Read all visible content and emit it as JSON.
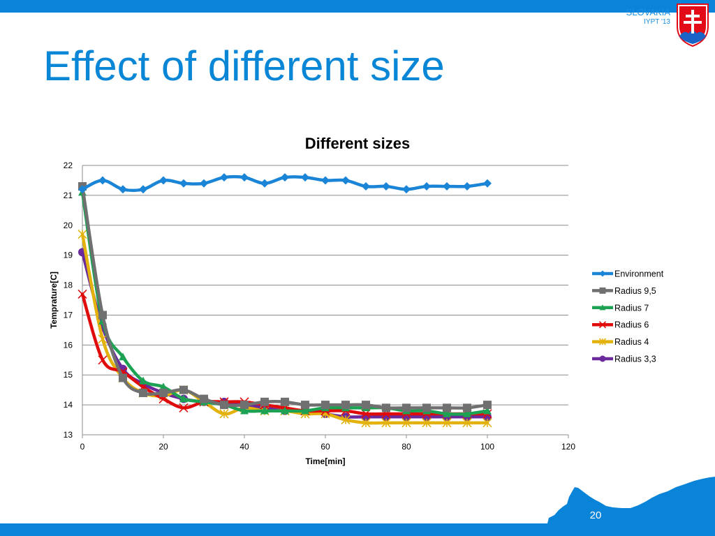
{
  "header": {
    "country": "SLOVAKIA",
    "event": "IYPT '13",
    "brand_color": "#0a84d8"
  },
  "crest_icon": "slovak-coat-of-arms-icon",
  "slide": {
    "title": "Effect of different size",
    "page_number": "20"
  },
  "chart_data": {
    "type": "line",
    "title": "Different sizes",
    "xlabel": "Time[min]",
    "ylabel": "Temprature[C]",
    "xlim": [
      0,
      120
    ],
    "ylim": [
      13,
      22
    ],
    "xticks": [
      0,
      20,
      40,
      60,
      80,
      100,
      120
    ],
    "yticks": [
      13,
      14,
      15,
      16,
      17,
      18,
      19,
      20,
      21,
      22
    ],
    "grid": "horizontal",
    "legend_position": "right",
    "x": [
      0,
      5,
      10,
      15,
      20,
      25,
      30,
      35,
      40,
      45,
      50,
      55,
      60,
      65,
      70,
      75,
      80,
      85,
      90,
      95,
      100
    ],
    "series": [
      {
        "name": "Environment",
        "color": "#1a85d6",
        "marker": "diamond",
        "values": [
          21.2,
          21.5,
          21.2,
          21.2,
          21.5,
          21.4,
          21.4,
          21.6,
          21.6,
          21.4,
          21.6,
          21.6,
          21.5,
          21.5,
          21.3,
          21.3,
          21.2,
          21.3,
          21.3,
          21.3,
          21.4
        ]
      },
      {
        "name": "Radius 9,5",
        "color": "#707070",
        "marker": "square",
        "values": [
          21.3,
          17.0,
          14.9,
          14.4,
          14.4,
          14.5,
          14.2,
          14.0,
          14.0,
          14.1,
          14.1,
          14.0,
          14.0,
          14.0,
          14.0,
          13.9,
          13.9,
          13.9,
          13.9,
          13.9,
          14.0
        ]
      },
      {
        "name": "Radius 7",
        "color": "#1da254",
        "marker": "triangle",
        "values": [
          21.1,
          16.8,
          15.6,
          14.8,
          14.6,
          14.2,
          14.1,
          14.0,
          13.8,
          13.8,
          13.8,
          13.8,
          13.9,
          13.9,
          13.9,
          13.9,
          13.8,
          13.8,
          13.7,
          13.7,
          13.8
        ]
      },
      {
        "name": "Radius 6",
        "color": "#e00b0b",
        "marker": "x",
        "values": [
          17.7,
          15.5,
          15.1,
          14.6,
          14.2,
          13.9,
          14.1,
          14.1,
          14.1,
          14.0,
          13.9,
          13.8,
          13.8,
          13.8,
          13.7,
          13.7,
          13.7,
          13.7,
          13.7,
          13.7,
          13.7
        ]
      },
      {
        "name": "Radius 4",
        "color": "#e3b20c",
        "marker": "star",
        "values": [
          19.7,
          16.2,
          14.9,
          14.4,
          14.3,
          14.5,
          14.1,
          13.7,
          13.9,
          13.8,
          13.8,
          13.7,
          13.7,
          13.5,
          13.4,
          13.4,
          13.4,
          13.4,
          13.4,
          13.4,
          13.4
        ]
      },
      {
        "name": "Radius 3,3",
        "color": "#6a2a9c",
        "marker": "circle",
        "values": [
          19.1,
          16.6,
          15.2,
          14.7,
          14.4,
          14.2,
          14.1,
          14.1,
          14.0,
          13.9,
          13.8,
          13.8,
          13.7,
          13.6,
          13.6,
          13.6,
          13.6,
          13.6,
          13.6,
          13.6,
          13.6
        ]
      }
    ]
  }
}
